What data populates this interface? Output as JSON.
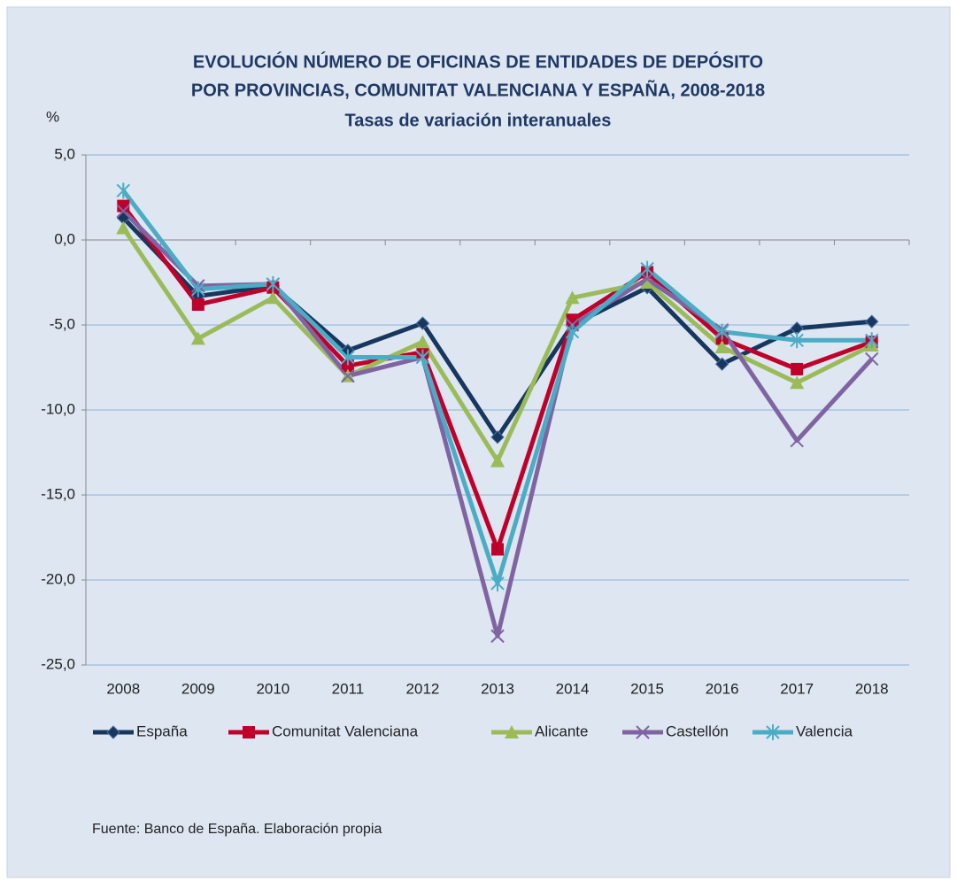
{
  "chart_data": {
    "type": "line",
    "title": [
      "EVOLUCIÓN  NÚMERO DE OFICINAS DE ENTIDADES DE DEPÓSITO",
      "POR PROVINCIAS, COMUNITAT VALENCIANA Y ESPAÑA, 2008-2018"
    ],
    "subtitle": "Tasas de variación interanuales",
    "y_label": "%",
    "source": "Fuente:  Banco de España. Elaboración propia",
    "categories": [
      "2008",
      "2009",
      "2010",
      "2011",
      "2012",
      "2013",
      "2014",
      "2015",
      "2016",
      "2017",
      "2018"
    ],
    "ylim": [
      -25,
      5
    ],
    "yticks": [
      {
        "value": 5,
        "label": "5,0"
      },
      {
        "value": 0,
        "label": "0,0"
      },
      {
        "value": -5,
        "label": "-5,0"
      },
      {
        "value": -10,
        "label": "-10,0"
      },
      {
        "value": -15,
        "label": "-15,0"
      },
      {
        "value": -20,
        "label": "-20,0"
      },
      {
        "value": -25,
        "label": "-25,0"
      }
    ],
    "grid": true,
    "legend": "bottom",
    "series": [
      {
        "name": "España",
        "color": "#17375e",
        "marker": "diamond",
        "values": [
          1.3,
          -3.3,
          -2.7,
          -6.5,
          -4.9,
          -11.6,
          -5.0,
          -2.8,
          -7.3,
          -5.2,
          -4.8
        ]
      },
      {
        "name": "Comunitat Valenciana",
        "color": "#c0002a",
        "marker": "square",
        "values": [
          2.0,
          -3.8,
          -2.8,
          -7.4,
          -6.6,
          -18.2,
          -4.7,
          -1.9,
          -5.8,
          -7.6,
          -6.0
        ]
      },
      {
        "name": "Alicante",
        "color": "#9bbb59",
        "marker": "triangle",
        "values": [
          0.7,
          -5.8,
          -3.4,
          -8.0,
          -6.0,
          -13.0,
          -3.4,
          -2.5,
          -6.3,
          -8.4,
          -6.2
        ]
      },
      {
        "name": "Castellón",
        "color": "#8064a2",
        "marker": "x",
        "values": [
          1.7,
          -2.7,
          -2.6,
          -8.0,
          -6.9,
          -23.3,
          -5.0,
          -2.3,
          -5.3,
          -11.8,
          -7.0
        ]
      },
      {
        "name": "Valencia",
        "color": "#4bacc6",
        "marker": "star",
        "values": [
          2.9,
          -2.9,
          -2.6,
          -6.9,
          -6.9,
          -20.2,
          -5.4,
          -1.7,
          -5.4,
          -5.9,
          -5.9
        ]
      }
    ]
  }
}
